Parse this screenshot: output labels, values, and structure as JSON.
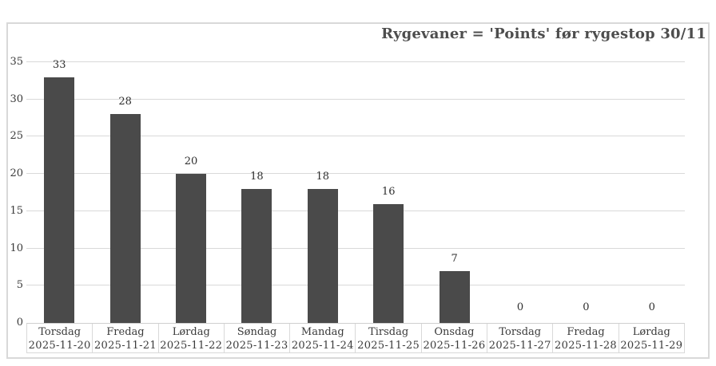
{
  "chart": {
    "title": "Rygevaner = 'Points' før rygestop 30/11"
  },
  "chart_data": {
    "type": "bar",
    "title": "Rygevaner = 'Points' før rygestop 30/11",
    "categories": [
      {
        "day": "Torsdag",
        "date": "2025-11-20"
      },
      {
        "day": "Fredag",
        "date": "2025-11-21"
      },
      {
        "day": "Lørdag",
        "date": "2025-11-22"
      },
      {
        "day": "Søndag",
        "date": "2025-11-23"
      },
      {
        "day": "Mandag",
        "date": "2025-11-24"
      },
      {
        "day": "Tirsdag",
        "date": "2025-11-25"
      },
      {
        "day": "Onsdag",
        "date": "2025-11-26"
      },
      {
        "day": "Torsdag",
        "date": "2025-11-27"
      },
      {
        "day": "Fredag",
        "date": "2025-11-28"
      },
      {
        "day": "Lørdag",
        "date": "2025-11-29"
      }
    ],
    "values": [
      33,
      28,
      20,
      18,
      18,
      16,
      7,
      0,
      0,
      0
    ],
    "data_labels": [
      "33",
      "28",
      "20",
      "18",
      "18",
      "16",
      "7",
      "0",
      "0",
      "0"
    ],
    "y_ticks": [
      0,
      5,
      10,
      15,
      20,
      25,
      30,
      35
    ],
    "ylim": [
      0,
      35
    ],
    "xlabel": "",
    "ylabel": "",
    "grid": true,
    "legend": "none",
    "colors": {
      "bar": "#4a4a4a",
      "gridline": "#d9d9d9",
      "border": "#d9d9d9",
      "title_text": "#4d4d4d",
      "axis_text": "#3b3b3b",
      "data_label_text": "#2f2f2f"
    }
  }
}
